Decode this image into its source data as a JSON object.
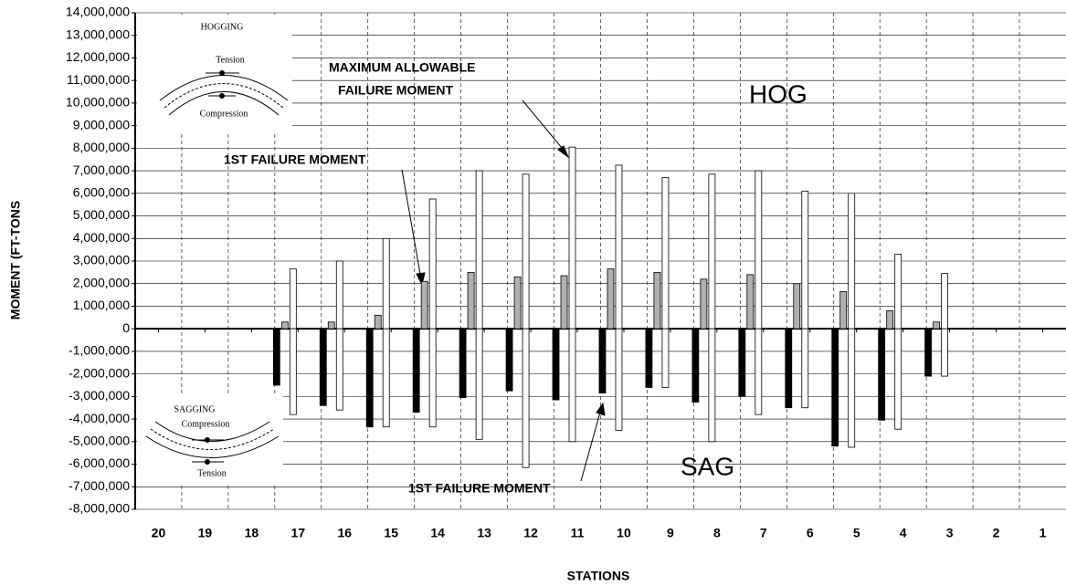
{
  "chart_data": {
    "type": "bar",
    "x_label": "STATIONS",
    "y_label": "MOMENT (FT-TONS",
    "categories": [
      "20",
      "19",
      "18",
      "17",
      "16",
      "15",
      "14",
      "13",
      "12",
      "11",
      "10",
      "9",
      "8",
      "7",
      "6",
      "5",
      "4",
      "3",
      "2",
      "1"
    ],
    "series": [
      {
        "color": "#000000",
        "values": [
          null,
          null,
          null,
          -2500000,
          -3400000,
          -4350000,
          -3700000,
          -3050000,
          -2750000,
          -3150000,
          -2850000,
          -2600000,
          -3250000,
          -3000000,
          -3500000,
          -5200000,
          -4050000,
          -2100000,
          null,
          null
        ]
      },
      {
        "color": "#b0b0b0",
        "values": [
          null,
          null,
          null,
          300000,
          300000,
          600000,
          2100000,
          2500000,
          2300000,
          2350000,
          2650000,
          2500000,
          2200000,
          2400000,
          2000000,
          1650000,
          800000,
          300000,
          null,
          null
        ]
      },
      {
        "color": "#ffffff",
        "values": [
          null,
          null,
          null,
          2650000,
          3000000,
          4000000,
          5750000,
          7000000,
          6850000,
          8050000,
          7250000,
          6700000,
          6850000,
          7000000,
          6100000,
          6000000,
          3300000,
          2450000,
          null,
          null
        ]
      },
      {
        "color": "#ffffff",
        "values": [
          null,
          null,
          null,
          -3800000,
          -3600000,
          -4350000,
          -4350000,
          -4900000,
          -6150000,
          -5000000,
          -4500000,
          -2600000,
          -5000000,
          -3800000,
          -3500000,
          -5250000,
          -4450000,
          -2100000,
          null,
          null
        ]
      }
    ],
    "ylim": [
      -8000000,
      14000000
    ],
    "yticks": [
      {
        "value": -8000000,
        "label": "-8,000,000"
      },
      {
        "value": -7000000,
        "label": "-7,000,000"
      },
      {
        "value": -6000000,
        "label": "-6,000,000"
      },
      {
        "value": -5000000,
        "label": "-5,000,000"
      },
      {
        "value": -4000000,
        "label": "-4,000,000"
      },
      {
        "value": -3000000,
        "label": "-3,000,000"
      },
      {
        "value": -2000000,
        "label": "-2,000,000"
      },
      {
        "value": -1000000,
        "label": "-1,000,000"
      },
      0,
      {
        "value": 1000000,
        "label": "1,000,000"
      },
      {
        "value": 2000000,
        "label": "2,000,000"
      },
      {
        "value": 3000000,
        "label": "3,000,000"
      },
      {
        "value": 4000000,
        "label": "4,000,000"
      },
      {
        "value": 5000000,
        "label": "5,000,000"
      },
      {
        "value": 6000000,
        "label": "6,000,000"
      },
      {
        "value": 7000000,
        "label": "7,000,000"
      },
      {
        "value": 8000000,
        "label": "8,000,000"
      },
      {
        "value": 9000000,
        "label": "9,000,000"
      },
      {
        "value": 10000000,
        "label": "10,000,000"
      },
      {
        "value": 11000000,
        "label": "11,000,000"
      },
      {
        "value": 12000000,
        "label": "12,000,000"
      },
      {
        "value": 13000000,
        "label": "13,000,000"
      },
      {
        "value": 14000000,
        "label": "14,000,000"
      }
    ],
    "grid": true,
    "annotations": [
      "MAXIMUM ALLOWABLE",
      "FAILURE MOMENT",
      "1ST FAILURE MOMENT",
      "1ST FAILURE MOMENT",
      "HOG",
      "SAG",
      "HOGGING",
      "Tension",
      "Compression",
      "SAGGING",
      "Compression",
      "Tension"
    ]
  }
}
